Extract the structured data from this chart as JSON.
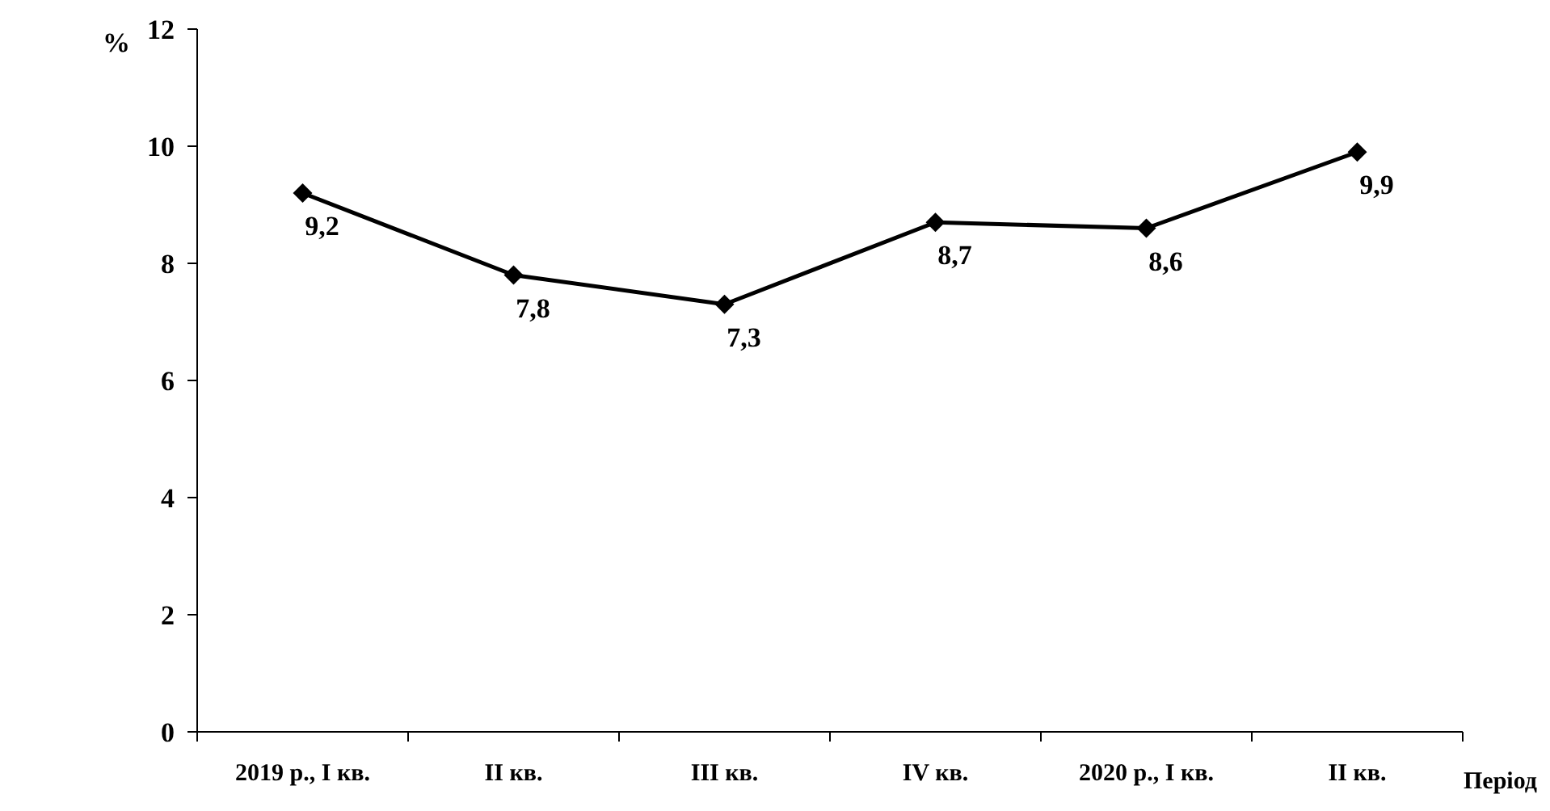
{
  "chart_data": {
    "type": "line",
    "xlabel": "Період",
    "ylabel": "%",
    "categories": [
      "2019 р., І кв.",
      "ІІ кв.",
      "ІІІ кв.",
      "ІV кв.",
      "2020 р., І кв.",
      "ІІ кв."
    ],
    "series": [
      {
        "color": "#000000",
        "values": [
          9.2,
          7.8,
          7.3,
          8.7,
          8.6,
          9.9
        ],
        "value_labels": [
          "9,2",
          "7,8",
          "7,3",
          "8,7",
          "8,6",
          "9,9"
        ]
      }
    ],
    "ylim": [
      0,
      12
    ],
    "yticks": [
      0,
      2,
      4,
      6,
      8,
      10,
      12
    ],
    "marker": "diamond",
    "line_style": "solid",
    "grid": false
  }
}
